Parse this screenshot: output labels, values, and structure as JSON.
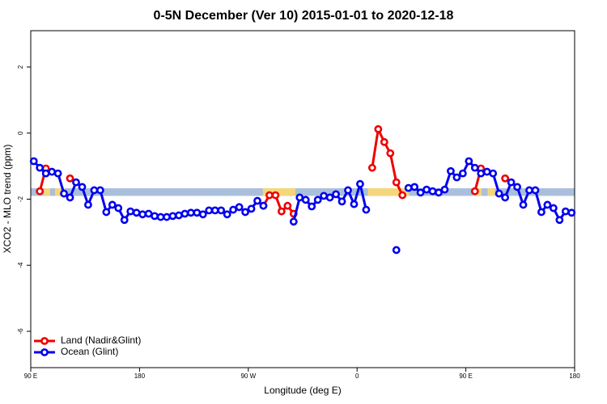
{
  "chart_data": {
    "type": "line",
    "title": "0-5N December (Ver 10)   2015-01-01 to 2020-12-18",
    "xlabel": "Longitude (deg E)",
    "ylabel": "XCO2 - MLO trend (ppm)",
    "xlim": [
      90,
      540
    ],
    "ylim": [
      -7.1,
      3.1
    ],
    "xticks": [
      {
        "value": 90,
        "label": "90 E"
      },
      180,
      {
        "value": 270,
        "label": "90 W"
      },
      {
        "value": 360,
        "label": "0"
      },
      {
        "value": 450,
        "label": "90 E"
      },
      {
        "value": 540,
        "label": "180"
      }
    ],
    "yticks": [
      -6,
      -4,
      -2,
      0,
      2
    ],
    "band": {
      "ylim": [
        -1.9,
        -1.67
      ],
      "color": "#a9bfdc",
      "highlight_color": "#f6d67a",
      "highlights": [
        [
          101,
          106
        ],
        [
          110,
          118
        ],
        [
          282,
          309
        ],
        [
          369,
          403
        ],
        [
          456,
          463
        ],
        [
          468,
          474
        ]
      ]
    },
    "legend": "lower left",
    "x": [
      92.5,
      97.5,
      102.5,
      107.5,
      112.5,
      117.5,
      122.5,
      127.5,
      132.5,
      137.5,
      142.5,
      147.5,
      152.5,
      157.5,
      162.5,
      167.5,
      172.5,
      177.5,
      182.5,
      187.5,
      192.5,
      197.5,
      202.5,
      207.5,
      212.5,
      217.5,
      222.5,
      227.5,
      232.5,
      237.5,
      242.5,
      247.5,
      252.5,
      257.5,
      262.5,
      267.5,
      272.5,
      277.5,
      282.5,
      287.5,
      292.5,
      297.5,
      302.5,
      307.5,
      312.5,
      317.5,
      322.5,
      327.5,
      332.5,
      337.5,
      342.5,
      347.5,
      352.5,
      357.5,
      362.5,
      367.5,
      372.5,
      377.5,
      382.5,
      387.5,
      392.5,
      397.5,
      402.5,
      407.5,
      412.5,
      417.5,
      422.5,
      427.5,
      432.5,
      437.5,
      442.5,
      447.5,
      452.5,
      457.5,
      462.5,
      467.5,
      472.5,
      477.5,
      482.5,
      487.5,
      492.5,
      497.5,
      502.5,
      507.5,
      512.5,
      517.5,
      522.5,
      527.5,
      532.5,
      537.5
    ],
    "series": [
      {
        "name": "Land (Nadir&Glint)",
        "color": "#ee0000",
        "values": [
          null,
          -1.76,
          -1.07,
          null,
          null,
          null,
          -1.37,
          null,
          null,
          null,
          null,
          null,
          null,
          null,
          null,
          null,
          null,
          null,
          null,
          null,
          null,
          null,
          null,
          null,
          null,
          null,
          null,
          null,
          null,
          null,
          null,
          null,
          null,
          null,
          null,
          null,
          null,
          null,
          -2.2,
          -1.88,
          -1.88,
          -2.37,
          -2.2,
          -2.44,
          null,
          null,
          null,
          null,
          null,
          null,
          null,
          null,
          null,
          null,
          null,
          null,
          -1.05,
          0.12,
          -0.27,
          -0.61,
          -1.49,
          -1.88,
          null,
          null,
          null,
          null,
          null,
          null,
          null,
          null,
          null,
          null,
          null,
          -1.76,
          -1.07,
          null,
          null,
          null,
          -1.37,
          null,
          null,
          null,
          null,
          null,
          null,
          null,
          null,
          null,
          null,
          null
        ]
      },
      {
        "name": "Ocean (Glint)",
        "color": "#0000ee",
        "values": [
          -0.85,
          -1.05,
          -1.22,
          -1.17,
          -1.22,
          -1.83,
          -1.95,
          -1.49,
          -1.63,
          -2.17,
          -1.73,
          -1.73,
          -2.39,
          -2.17,
          -2.27,
          -2.63,
          -2.37,
          -2.41,
          -2.46,
          -2.44,
          -2.51,
          -2.54,
          -2.54,
          -2.51,
          -2.49,
          -2.44,
          -2.41,
          -2.41,
          -2.46,
          -2.34,
          -2.34,
          -2.34,
          -2.46,
          -2.32,
          -2.24,
          -2.39,
          -2.29,
          -2.05,
          -2.2,
          null,
          null,
          null,
          null,
          -2.68,
          -1.95,
          -2.02,
          -2.22,
          -2.02,
          -1.9,
          -1.95,
          -1.85,
          -2.07,
          -1.73,
          -2.15,
          -1.54,
          -2.32,
          null,
          null,
          null,
          null,
          -3.54,
          null,
          -1.66,
          -1.63,
          -1.8,
          -1.71,
          -1.76,
          -1.8,
          -1.71,
          -1.15,
          -1.34,
          -1.22,
          -0.85,
          -1.05,
          -1.22,
          -1.17,
          -1.22,
          -1.83,
          -1.95,
          -1.49,
          -1.63,
          -2.17,
          -1.73,
          -1.73,
          -2.39,
          -2.17,
          -2.27,
          -2.63,
          -2.37,
          -2.41
        ]
      }
    ]
  }
}
